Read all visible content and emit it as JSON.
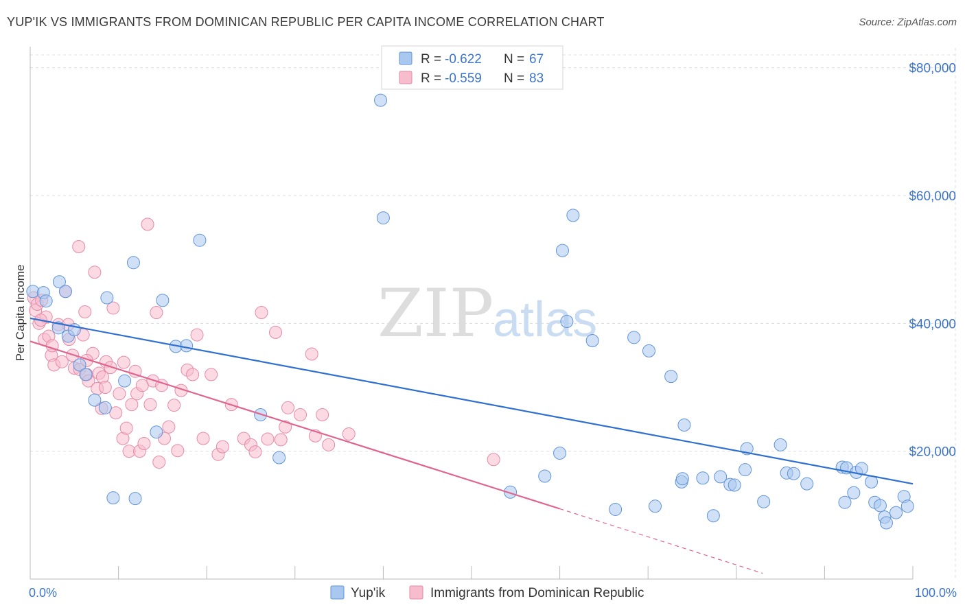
{
  "title": "YUP'IK VS IMMIGRANTS FROM DOMINICAN REPUBLIC PER CAPITA INCOME CORRELATION CHART",
  "source": "Source: ZipAtlas.com",
  "watermark": {
    "zip": "ZIP",
    "atlas": "atlas"
  },
  "colors": {
    "blue_fill": "#a9c8f0",
    "blue_stroke": "#5f93d6",
    "blue_line": "#2f6fd0",
    "pink_fill": "#f7bccd",
    "pink_stroke": "#e58aa6",
    "pink_line": "#e0648e",
    "grid": "#dcdcdc",
    "axis_text": "#3b74c9"
  },
  "legend": {
    "r_label": "R =",
    "n_label": "N =",
    "rows": [
      {
        "r": "-0.622",
        "n": "67"
      },
      {
        "r": "-0.559",
        "n": "83"
      }
    ]
  },
  "chart_data": {
    "type": "scatter",
    "title": "YUP'IK VS IMMIGRANTS FROM DOMINICAN REPUBLIC PER CAPITA INCOME CORRELATION CHART",
    "xlabel": "",
    "ylabel": "Per Capita Income",
    "xlim": [
      0,
      100
    ],
    "ylim": [
      0,
      82000
    ],
    "x_tick_labels": [
      "0.0%",
      "100.0%"
    ],
    "y_ticks": [
      20000,
      40000,
      60000,
      80000
    ],
    "y_tick_labels": [
      "$20,000",
      "$40,000",
      "$60,000",
      "$80,000"
    ],
    "grid": true,
    "legend_position": "top-center",
    "series": [
      {
        "name": "Yup'ik",
        "color": "#a9c8f0",
        "trend": {
          "x": [
            0,
            100
          ],
          "y": [
            40800,
            14900
          ]
        },
        "points": [
          [
            0.3,
            45000
          ],
          [
            1.5,
            44800
          ],
          [
            1.8,
            43500
          ],
          [
            3.2,
            39300
          ],
          [
            3.3,
            46500
          ],
          [
            4.0,
            45000
          ],
          [
            4.3,
            38000
          ],
          [
            5.0,
            39000
          ],
          [
            5.6,
            33500
          ],
          [
            6.3,
            32000
          ],
          [
            7.3,
            28000
          ],
          [
            8.5,
            26800
          ],
          [
            8.7,
            44000
          ],
          [
            9.4,
            12700
          ],
          [
            10.7,
            31000
          ],
          [
            11.7,
            49500
          ],
          [
            11.9,
            12600
          ],
          [
            14.3,
            23000
          ],
          [
            15.0,
            43600
          ],
          [
            16.5,
            36400
          ],
          [
            17.7,
            36500
          ],
          [
            19.2,
            53000
          ],
          [
            26.1,
            25700
          ],
          [
            28.2,
            19000
          ],
          [
            39.7,
            74900
          ],
          [
            40.0,
            56500
          ],
          [
            54.4,
            13600
          ],
          [
            58.3,
            16100
          ],
          [
            60.0,
            19700
          ],
          [
            60.3,
            51400
          ],
          [
            60.8,
            40300
          ],
          [
            61.5,
            56900
          ],
          [
            63.7,
            37300
          ],
          [
            66.3,
            10900
          ],
          [
            68.4,
            37800
          ],
          [
            70.1,
            35700
          ],
          [
            70.8,
            11400
          ],
          [
            72.6,
            31700
          ],
          [
            73.8,
            15200
          ],
          [
            73.9,
            15700
          ],
          [
            74.1,
            24100
          ],
          [
            76.2,
            15800
          ],
          [
            77.4,
            9900
          ],
          [
            79.3,
            14800
          ],
          [
            79.8,
            14700
          ],
          [
            81.0,
            17100
          ],
          [
            81.2,
            20400
          ],
          [
            83.1,
            12100
          ],
          [
            85.0,
            21000
          ],
          [
            85.7,
            16600
          ],
          [
            88.0,
            14900
          ],
          [
            92.0,
            17500
          ],
          [
            92.3,
            12000
          ],
          [
            92.5,
            17400
          ],
          [
            93.3,
            13500
          ],
          [
            93.6,
            16700
          ],
          [
            94.2,
            17300
          ],
          [
            95.3,
            15200
          ],
          [
            95.7,
            12000
          ],
          [
            96.3,
            11500
          ],
          [
            96.8,
            9700
          ],
          [
            97.0,
            8800
          ],
          [
            98.1,
            10400
          ],
          [
            99.0,
            12900
          ],
          [
            99.4,
            11400
          ],
          [
            78.2,
            16000
          ],
          [
            86.5,
            16500
          ]
        ]
      },
      {
        "name": "Immigrants from Dominican Republic",
        "color": "#f7bccd",
        "trend": {
          "x": [
            0,
            60
          ],
          "y": [
            37200,
            11000
          ]
        },
        "trend_dashed": {
          "x": [
            60,
            83
          ],
          "y": [
            11000,
            900
          ]
        },
        "points": [
          [
            0.4,
            44000
          ],
          [
            0.6,
            42000
          ],
          [
            0.8,
            43000
          ],
          [
            1.0,
            40000
          ],
          [
            1.3,
            43600
          ],
          [
            1.6,
            37500
          ],
          [
            1.8,
            41000
          ],
          [
            2.1,
            38000
          ],
          [
            2.4,
            35000
          ],
          [
            2.5,
            36500
          ],
          [
            2.7,
            33500
          ],
          [
            3.2,
            39800
          ],
          [
            3.6,
            34000
          ],
          [
            4.0,
            45000
          ],
          [
            4.3,
            39800
          ],
          [
            4.4,
            37500
          ],
          [
            4.8,
            35000
          ],
          [
            5.0,
            33000
          ],
          [
            5.6,
            32800
          ],
          [
            6.0,
            38200
          ],
          [
            6.2,
            41800
          ],
          [
            6.4,
            32000
          ],
          [
            6.6,
            31000
          ],
          [
            7.1,
            35300
          ],
          [
            7.3,
            48000
          ],
          [
            7.6,
            29800
          ],
          [
            7.8,
            32200
          ],
          [
            8.1,
            26700
          ],
          [
            8.2,
            31600
          ],
          [
            8.5,
            30000
          ],
          [
            8.6,
            34000
          ],
          [
            9.1,
            33100
          ],
          [
            9.4,
            42400
          ],
          [
            9.7,
            26000
          ],
          [
            10.1,
            29000
          ],
          [
            10.5,
            22000
          ],
          [
            10.6,
            33900
          ],
          [
            10.9,
            23600
          ],
          [
            11.2,
            20000
          ],
          [
            11.5,
            27300
          ],
          [
            11.9,
            32500
          ],
          [
            12.1,
            29000
          ],
          [
            12.4,
            20000
          ],
          [
            12.7,
            30300
          ],
          [
            12.9,
            21200
          ],
          [
            13.3,
            55500
          ],
          [
            13.6,
            27300
          ],
          [
            13.9,
            31000
          ],
          [
            14.3,
            41700
          ],
          [
            14.6,
            18300
          ],
          [
            14.9,
            30300
          ],
          [
            15.2,
            22000
          ],
          [
            15.7,
            23800
          ],
          [
            16.3,
            27200
          ],
          [
            16.7,
            20100
          ],
          [
            17.1,
            29500
          ],
          [
            17.8,
            32700
          ],
          [
            18.4,
            32000
          ],
          [
            18.9,
            38200
          ],
          [
            19.6,
            22000
          ],
          [
            20.5,
            32000
          ],
          [
            21.3,
            19500
          ],
          [
            21.8,
            20700
          ],
          [
            22.8,
            27300
          ],
          [
            24.2,
            22000
          ],
          [
            25.0,
            21000
          ],
          [
            25.5,
            19900
          ],
          [
            26.2,
            41700
          ],
          [
            26.9,
            21900
          ],
          [
            27.8,
            38600
          ],
          [
            28.4,
            21800
          ],
          [
            28.9,
            23800
          ],
          [
            29.2,
            26800
          ],
          [
            30.6,
            25700
          ],
          [
            31.9,
            35200
          ],
          [
            32.3,
            22400
          ],
          [
            33.1,
            25700
          ],
          [
            33.8,
            21000
          ],
          [
            36.1,
            22700
          ],
          [
            52.5,
            18700
          ],
          [
            5.5,
            52000
          ],
          [
            6.4,
            34200
          ],
          [
            1.2,
            40500
          ]
        ]
      }
    ]
  },
  "bottom_legend": [
    "Yup'ik",
    "Immigrants from Dominican Republic"
  ]
}
